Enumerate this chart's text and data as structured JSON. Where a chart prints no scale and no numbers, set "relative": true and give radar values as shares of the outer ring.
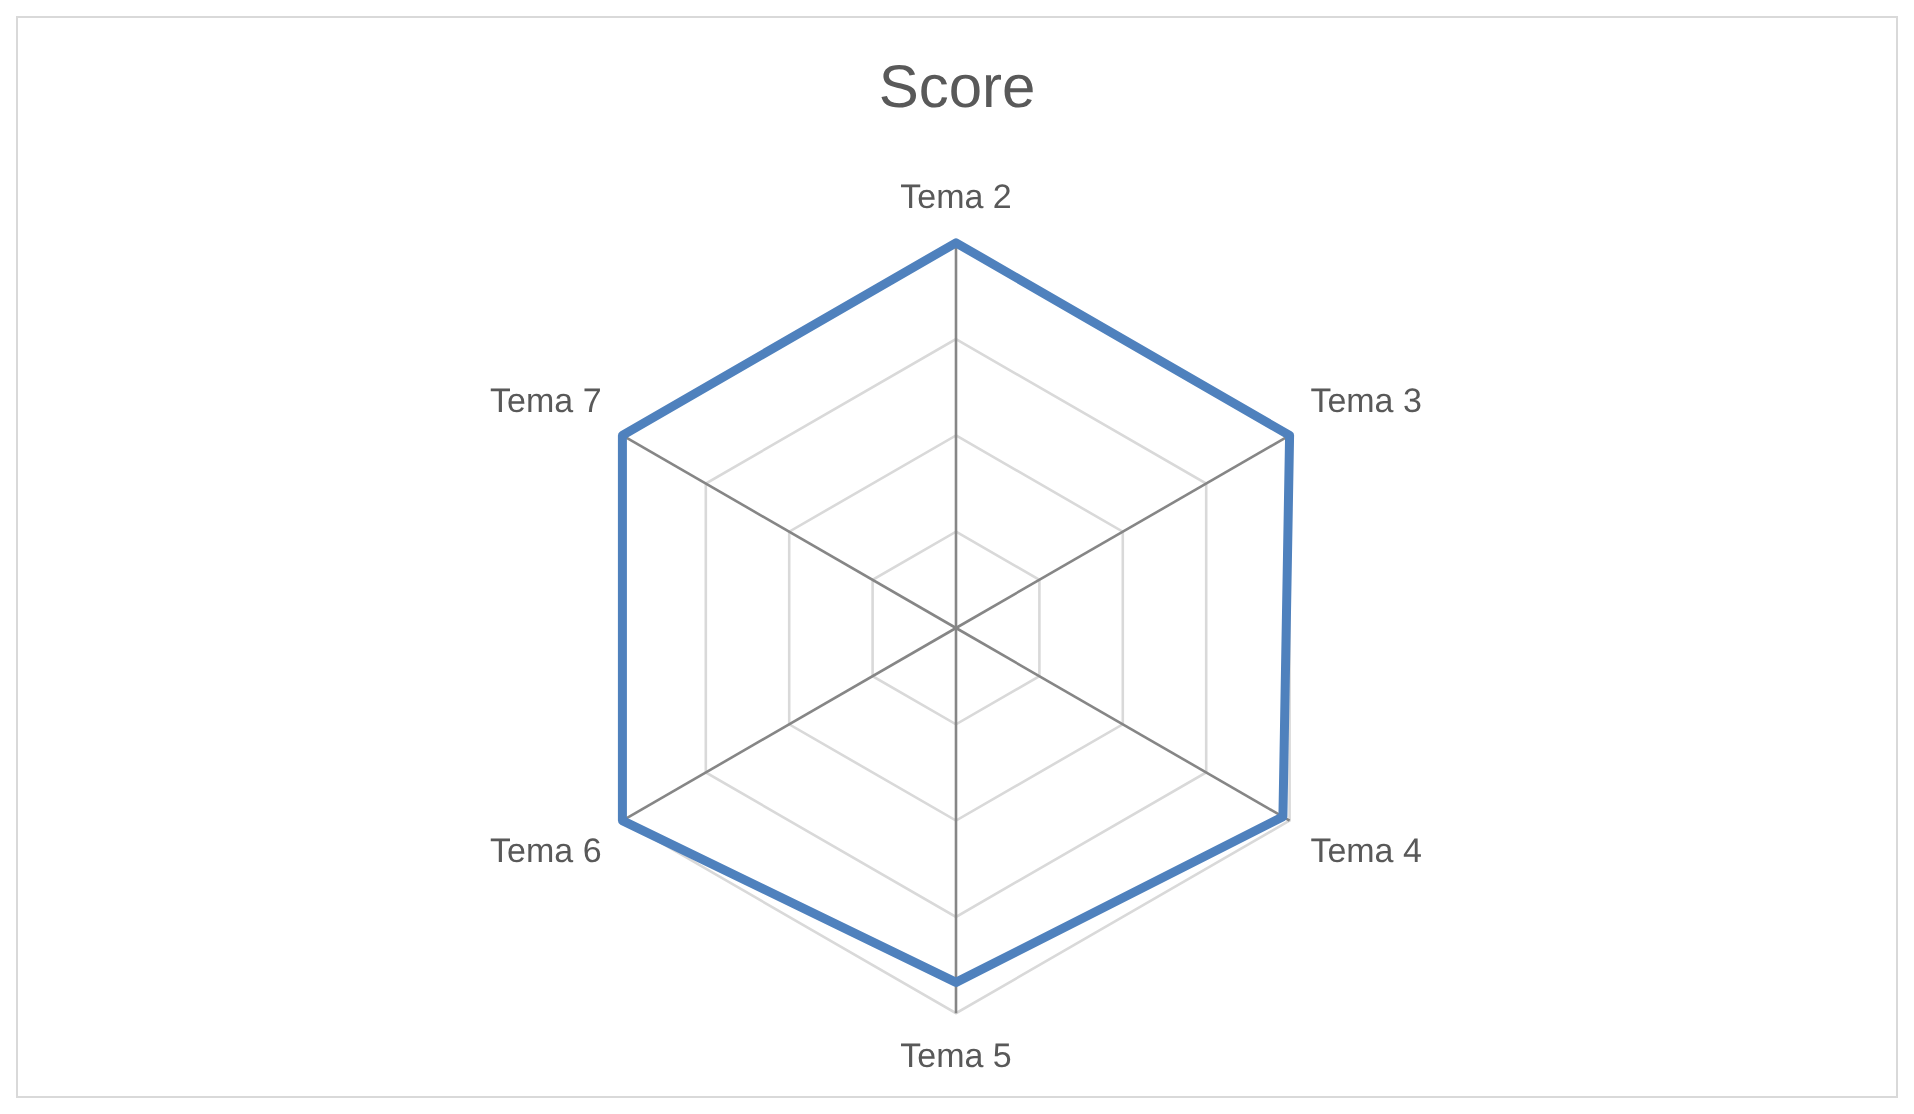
{
  "chart_data": {
    "type": "radar",
    "title": "Score",
    "relative": true,
    "grid": true,
    "legend": false,
    "marker": "none",
    "categories": [
      "Tema 2",
      "Tema 3",
      "Tema 4",
      "Tema 5",
      "Tema 6",
      "Tema 7"
    ],
    "series": [
      {
        "color": "#4f81bd",
        "values": [
          1,
          1,
          0.98,
          0.92,
          1,
          1
        ]
      }
    ]
  }
}
